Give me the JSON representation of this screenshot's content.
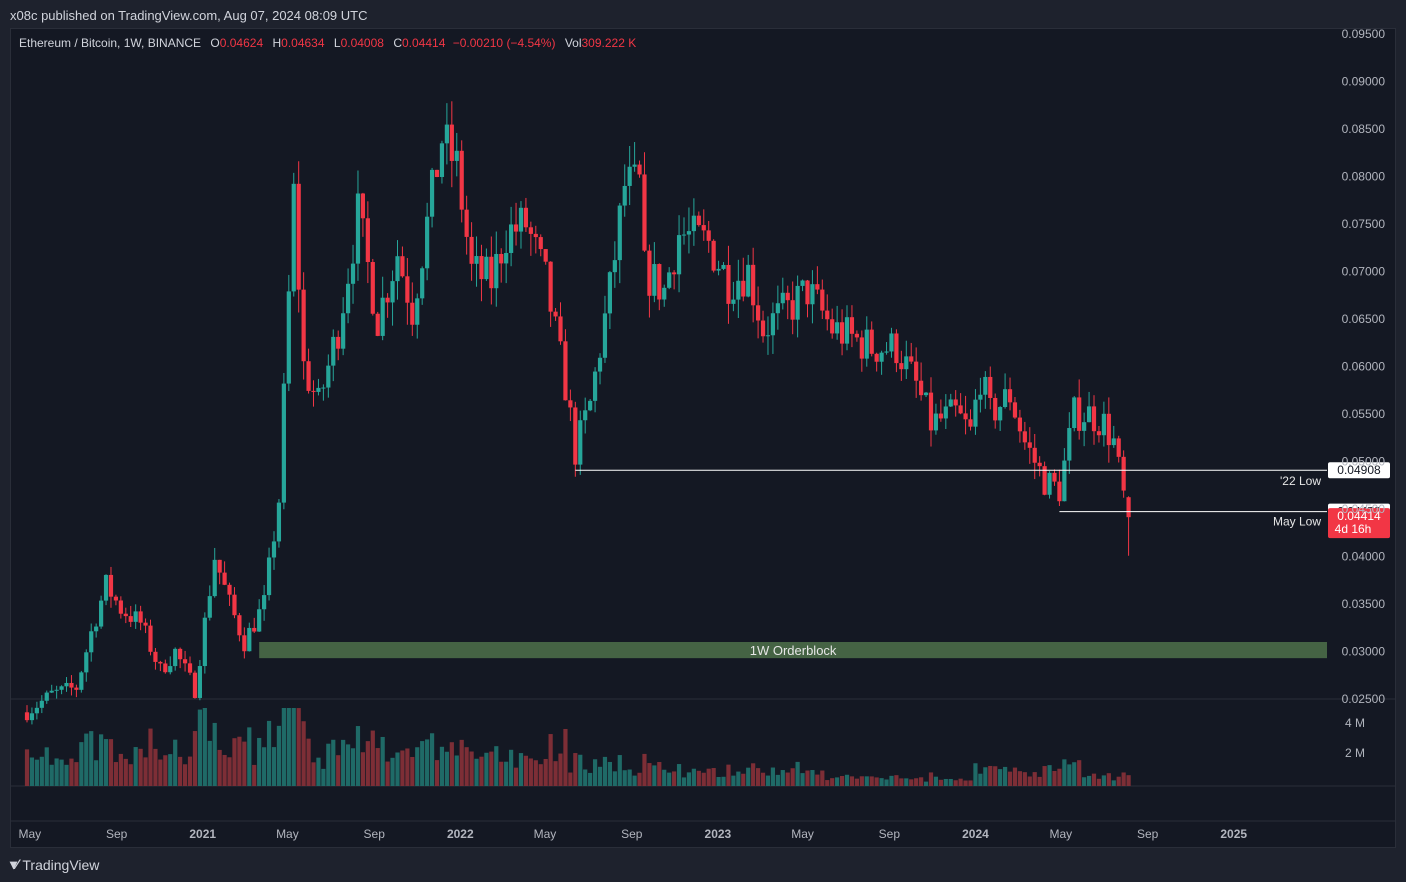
{
  "header": {
    "published_text": "x08c published on TradingView.com, Aug 07, 2024 08:09 UTC"
  },
  "legend": {
    "symbol": "Ethereum / Bitcoin, 1W, BINANCE",
    "open_label": "O",
    "open": "0.04624",
    "high_label": "H",
    "high": "0.04634",
    "low_label": "L",
    "low": "0.04008",
    "close_label": "C",
    "close": "0.04414",
    "change": "−0.00210 (−4.54%)",
    "vol_label": "Vol",
    "vol": "309.222 K"
  },
  "footer": {
    "brand": "TradingView",
    "brand_icon": "tradingview-logo-icon"
  },
  "colors": {
    "up": "#26a69a",
    "down": "#f23645",
    "up_volume": "#1f6a67",
    "down_volume": "#7d2e36",
    "orderblock": "#4a6b48",
    "background": "#141823"
  },
  "chart_data": {
    "type": "candlestick",
    "symbol": "Ethereum / Bitcoin",
    "interval": "1W",
    "exchange": "BINANCE",
    "ylim": [
      0.025,
      0.095
    ],
    "y_scale": "linear",
    "y_ticks": [
      "0.02500",
      "0.03000",
      "0.03500",
      "0.04000",
      "0.04500",
      "0.05000",
      "0.05500",
      "0.06000",
      "0.06500",
      "0.07000",
      "0.07500",
      "0.08000",
      "0.08500",
      "0.09000",
      "0.09500"
    ],
    "x_tick_labels": [
      "May",
      "Sep",
      "2021",
      "May",
      "Sep",
      "2022",
      "May",
      "Sep",
      "2023",
      "May",
      "Sep",
      "2024",
      "May",
      "Sep",
      "2025"
    ],
    "bold_x_ticks": [
      "2021",
      "2022",
      "2023",
      "2024",
      "2025"
    ],
    "volume_ticks": [
      "2 M",
      "4 M"
    ],
    "price_path": [
      [
        "2020-04-27",
        0.0236
      ],
      [
        "2020-06-01",
        0.0255
      ],
      [
        "2020-07-06",
        0.0262
      ],
      [
        "2020-07-27",
        0.032
      ],
      [
        "2020-08-17",
        0.037
      ],
      [
        "2020-09-07",
        0.0345
      ],
      [
        "2020-10-05",
        0.033
      ],
      [
        "2020-11-02",
        0.028
      ],
      [
        "2020-11-23",
        0.03
      ],
      [
        "2020-12-21",
        0.026
      ],
      [
        "2021-01-18",
        0.04
      ],
      [
        "2021-02-08",
        0.035
      ],
      [
        "2021-03-01",
        0.031
      ],
      [
        "2021-03-29",
        0.035
      ],
      [
        "2021-04-19",
        0.046
      ],
      [
        "2021-05-10",
        0.078
      ],
      [
        "2021-05-24",
        0.06
      ],
      [
        "2021-06-14",
        0.056
      ],
      [
        "2021-07-12",
        0.064
      ],
      [
        "2021-08-09",
        0.076
      ],
      [
        "2021-09-06",
        0.065
      ],
      [
        "2021-10-04",
        0.072
      ],
      [
        "2021-10-25",
        0.066
      ],
      [
        "2021-12-06",
        0.084
      ],
      [
        "2021-12-27",
        0.081
      ],
      [
        "2022-01-17",
        0.07
      ],
      [
        "2022-02-14",
        0.069
      ],
      [
        "2022-03-07",
        0.074
      ],
      [
        "2022-04-04",
        0.075
      ],
      [
        "2022-05-02",
        0.069
      ],
      [
        "2022-05-30",
        0.058
      ],
      [
        "2022-06-13",
        0.051
      ],
      [
        "2022-07-04",
        0.056
      ],
      [
        "2022-08-01",
        0.068
      ],
      [
        "2022-08-22",
        0.079
      ],
      [
        "2022-09-12",
        0.079
      ],
      [
        "2022-09-19",
        0.07
      ],
      [
        "2022-10-17",
        0.068
      ],
      [
        "2022-11-07",
        0.074
      ],
      [
        "2022-12-19",
        0.073
      ],
      [
        "2023-01-16",
        0.069
      ],
      [
        "2023-02-13",
        0.07
      ],
      [
        "2023-03-06",
        0.064
      ],
      [
        "2023-04-10",
        0.066
      ],
      [
        "2023-05-08",
        0.068
      ],
      [
        "2023-06-12",
        0.064
      ],
      [
        "2023-07-10",
        0.063
      ],
      [
        "2023-08-07",
        0.062
      ],
      [
        "2023-09-11",
        0.062
      ],
      [
        "2023-10-09",
        0.058
      ],
      [
        "2023-10-30",
        0.054
      ],
      [
        "2023-12-04",
        0.055
      ],
      [
        "2023-12-25",
        0.053
      ],
      [
        "2024-01-08",
        0.059
      ],
      [
        "2024-01-22",
        0.055
      ],
      [
        "2024-02-19",
        0.057
      ],
      [
        "2024-03-11",
        0.052
      ],
      [
        "2024-04-08",
        0.048
      ],
      [
        "2024-04-29",
        0.047
      ],
      [
        "2024-05-20",
        0.055
      ],
      [
        "2024-06-10",
        0.055
      ],
      [
        "2024-07-01",
        0.054
      ],
      [
        "2024-07-15",
        0.052
      ],
      [
        "2024-07-29",
        0.0463
      ],
      [
        "2024-08-05",
        0.0441
      ]
    ],
    "last_candle": {
      "date": "2024-08-05",
      "open": 0.04624,
      "high": 0.04634,
      "low": 0.04008,
      "close": 0.04414,
      "volume": "309.222 K"
    },
    "annotations": {
      "low_2022": {
        "label": "'22 Low",
        "value": 0.04908,
        "value_text": "0.04908",
        "start_date": "2022-06-13"
      },
      "may_low": {
        "label": "May Low",
        "value": 0.04473,
        "value_text": "0.04473",
        "start_date": "2024-04-29"
      },
      "orderblock": {
        "label": "1W Orderblock",
        "y_low": 0.0293,
        "y_high": 0.031,
        "start_date": "2021-03-22"
      },
      "last_price": {
        "value_text": "0.04414",
        "countdown": "4d 16h"
      }
    }
  }
}
